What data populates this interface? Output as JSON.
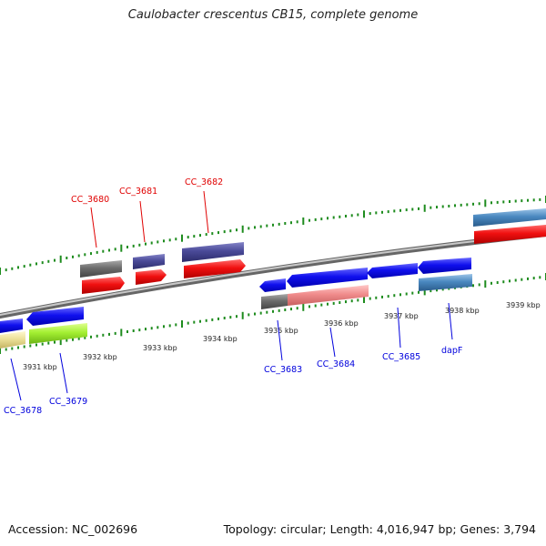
{
  "title": "Caulobacter crescentus CB15, complete genome",
  "footer": {
    "accession": "Accession: NC_002696",
    "summary": "Topology: circular; Length: 4,016,947 bp; Genes: 3,794"
  },
  "colors": {
    "backbone": "#8c8c8c",
    "tick": "#1e8c1e",
    "label_top": "#e00000",
    "label_bottom": "#0000dd"
  },
  "kbp_labels": [
    "3931 kbp",
    "3932 kbp",
    "3933 kbp",
    "3934 kbp",
    "3935 kbp",
    "3936 kbp",
    "3937 kbp",
    "3938 kbp",
    "3939 kbp"
  ],
  "genes_top": [
    {
      "name": "CC_3680"
    },
    {
      "name": "CC_3681"
    },
    {
      "name": "CC_3682"
    }
  ],
  "genes_bottom": [
    {
      "name": "CC_3678"
    },
    {
      "name": "CC_3679"
    },
    {
      "name": "CC_3683"
    },
    {
      "name": "CC_3684"
    },
    {
      "name": "CC_3685"
    },
    {
      "name": "dapF"
    }
  ]
}
